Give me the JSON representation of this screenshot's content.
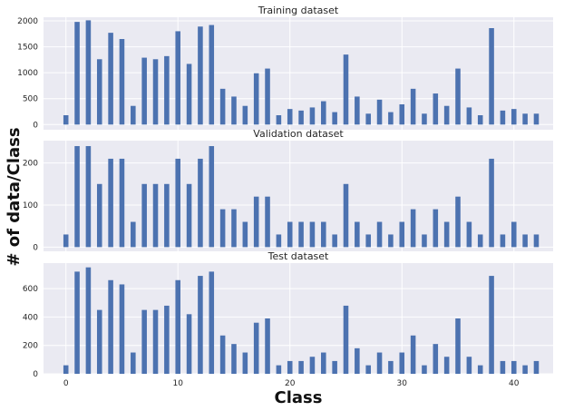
{
  "figure": {
    "xlabel": "Class",
    "ylabel": "# of data/Class",
    "xlim": [
      -2,
      43.5
    ],
    "xticks": [
      0,
      10,
      20,
      30,
      40
    ],
    "grid": true,
    "colors": {
      "bar": "#4c72b0",
      "background": "#eaeaf2",
      "grid": "#ffffff"
    }
  },
  "chart_data": [
    {
      "type": "bar",
      "title": "Training dataset",
      "x": [
        0,
        1,
        2,
        3,
        4,
        5,
        6,
        7,
        8,
        9,
        10,
        11,
        12,
        13,
        14,
        15,
        16,
        17,
        18,
        19,
        20,
        21,
        22,
        23,
        24,
        25,
        26,
        27,
        28,
        29,
        30,
        31,
        32,
        33,
        34,
        35,
        36,
        37,
        38,
        39,
        40,
        41,
        42
      ],
      "values": [
        180,
        1980,
        2010,
        1260,
        1770,
        1650,
        360,
        1290,
        1260,
        1320,
        1800,
        1170,
        1890,
        1920,
        690,
        540,
        360,
        990,
        1080,
        180,
        300,
        270,
        330,
        450,
        240,
        1350,
        540,
        210,
        480,
        240,
        390,
        690,
        210,
        599,
        360,
        1080,
        330,
        180,
        1860,
        270,
        300,
        210,
        210
      ],
      "ylim": [
        -100,
        2070
      ],
      "yticks": [
        0,
        500,
        1000,
        1500,
        2000
      ]
    },
    {
      "type": "bar",
      "title": "Validation dataset",
      "x": [
        0,
        1,
        2,
        3,
        4,
        5,
        6,
        7,
        8,
        9,
        10,
        11,
        12,
        13,
        14,
        15,
        16,
        17,
        18,
        19,
        20,
        21,
        22,
        23,
        24,
        25,
        26,
        27,
        28,
        29,
        30,
        31,
        32,
        33,
        34,
        35,
        36,
        37,
        38,
        39,
        40,
        41,
        42
      ],
      "values": [
        30,
        240,
        240,
        150,
        210,
        210,
        60,
        150,
        150,
        150,
        210,
        150,
        210,
        240,
        90,
        90,
        60,
        120,
        120,
        30,
        60,
        60,
        60,
        60,
        30,
        150,
        60,
        30,
        60,
        30,
        60,
        90,
        30,
        90,
        60,
        120,
        60,
        30,
        210,
        30,
        60,
        30,
        30
      ],
      "ylim": [
        -10,
        253
      ],
      "yticks": [
        0,
        100,
        200
      ]
    },
    {
      "type": "bar",
      "title": "Test dataset",
      "x": [
        0,
        1,
        2,
        3,
        4,
        5,
        6,
        7,
        8,
        9,
        10,
        11,
        12,
        13,
        14,
        15,
        16,
        17,
        18,
        19,
        20,
        21,
        22,
        23,
        24,
        25,
        26,
        27,
        28,
        29,
        30,
        31,
        32,
        33,
        34,
        35,
        36,
        37,
        38,
        39,
        40,
        41,
        42
      ],
      "values": [
        60,
        720,
        750,
        450,
        660,
        630,
        150,
        450,
        450,
        480,
        660,
        420,
        690,
        720,
        270,
        210,
        150,
        360,
        390,
        60,
        90,
        90,
        120,
        150,
        90,
        480,
        180,
        60,
        150,
        90,
        150,
        270,
        60,
        210,
        120,
        390,
        120,
        60,
        690,
        90,
        90,
        60,
        90
      ],
      "ylim": [
        0,
        780
      ],
      "yticks": [
        0,
        200,
        400,
        600
      ]
    }
  ]
}
